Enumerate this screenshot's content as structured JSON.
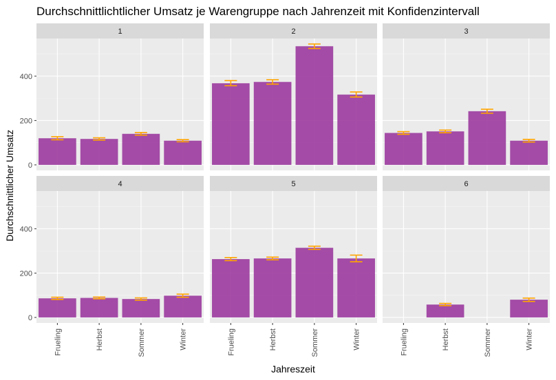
{
  "chart_data": {
    "type": "bar",
    "title": "Durchschnittlichtlicher Umsatz je Warengruppe nach Jahrenzeit mit Konfidenzintervall",
    "xlabel": "Jahreszeit",
    "ylabel": "Durchschnittlicher Umsatz",
    "categories": [
      "Frueling",
      "Herbst",
      "Sommer",
      "Winter"
    ],
    "ylim": [
      -25,
      570
    ],
    "yticks": [
      0,
      200,
      400
    ],
    "grid": true,
    "bar_color": "#9b3a9e",
    "errorbar_color": "#ffa500",
    "panel_bg": "#ebebeb",
    "strip_bg": "#d9d9d9",
    "facets": [
      {
        "label": "1",
        "values": [
          120,
          117,
          140,
          109
        ],
        "ci_low": [
          113,
          112,
          134,
          104
        ],
        "ci_high": [
          127,
          122,
          146,
          114
        ]
      },
      {
        "label": "2",
        "values": [
          368,
          374,
          535,
          317
        ],
        "ci_low": [
          357,
          364,
          525,
          306
        ],
        "ci_high": [
          380,
          384,
          545,
          329
        ]
      },
      {
        "label": "3",
        "values": [
          144,
          151,
          242,
          109
        ],
        "ci_low": [
          138,
          145,
          233,
          103
        ],
        "ci_high": [
          150,
          157,
          251,
          115
        ]
      },
      {
        "label": "4",
        "values": [
          86,
          88,
          83,
          98
        ],
        "ci_low": [
          81,
          84,
          78,
          91
        ],
        "ci_high": [
          91,
          92,
          88,
          105
        ]
      },
      {
        "label": "5",
        "values": [
          263,
          266,
          314,
          266
        ],
        "ci_low": [
          256,
          260,
          307,
          251
        ],
        "ci_high": [
          270,
          272,
          321,
          281
        ]
      },
      {
        "label": "6",
        "values": [
          null,
          58,
          null,
          80
        ],
        "ci_low": [
          null,
          53,
          null,
          72
        ],
        "ci_high": [
          null,
          63,
          null,
          87
        ]
      }
    ]
  }
}
